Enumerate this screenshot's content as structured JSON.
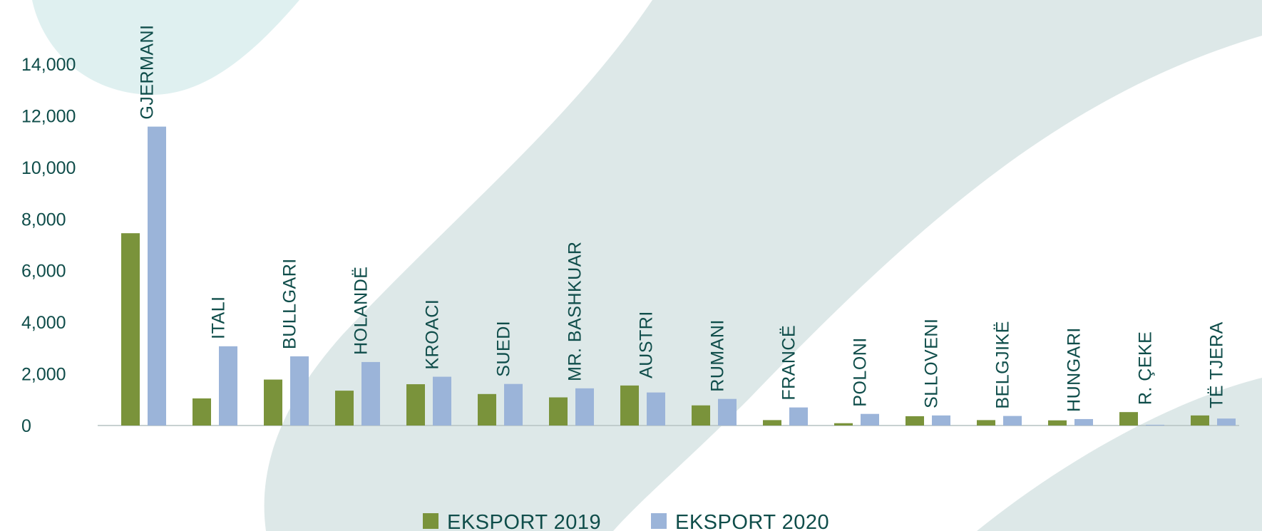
{
  "chart_data": {
    "type": "bar",
    "categories": [
      "GJERMANI",
      "ITALI",
      "BULLGARI",
      "HOLANDË",
      "KROACI",
      "SUEDI",
      "MR. BASHKUAR",
      "AUSTRI",
      "RUMANI",
      "FRANCË",
      "POLONI",
      "SLLOVENI",
      "BELGJIKË",
      "HUNGARI",
      "R. ÇEKE",
      "TË TJERA"
    ],
    "series": [
      {
        "name": "EKSPORT 2019",
        "color": "#7a933b",
        "values": [
          7450,
          1050,
          1780,
          1350,
          1600,
          1220,
          1090,
          1550,
          780,
          210,
          90,
          360,
          210,
          200,
          520,
          390
        ]
      },
      {
        "name": "EKSPORT 2020",
        "color": "#9bb4d9",
        "values": [
          11580,
          3070,
          2680,
          2460,
          1890,
          1610,
          1440,
          1280,
          1030,
          700,
          450,
          390,
          370,
          250,
          30,
          270
        ]
      }
    ],
    "ylim": [
      0,
      14000
    ],
    "yticks": [
      "0",
      "2,000",
      "4,000",
      "6,000",
      "8,000",
      "10,000",
      "12,000",
      "14,000"
    ],
    "ytick_values": [
      0,
      2000,
      4000,
      6000,
      8000,
      10000,
      12000,
      14000
    ],
    "grid": false,
    "legend_position": "bottom-center"
  }
}
